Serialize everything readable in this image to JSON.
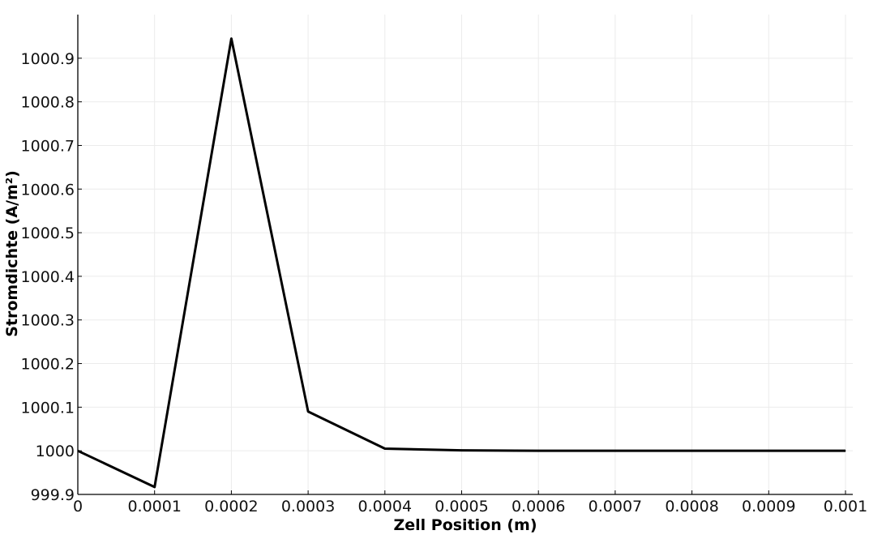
{
  "chart_data": {
    "type": "line",
    "title": "",
    "xlabel": "Zell Position (m)",
    "ylabel": "Stromdichte (A/m²)",
    "xlim": [
      0,
      0.001
    ],
    "ylim": [
      999.9,
      1001.0
    ],
    "grid": true,
    "legend": "none",
    "x_ticks": [
      {
        "value": 0,
        "label": "0"
      },
      {
        "value": 0.0001,
        "label": "0.0001"
      },
      {
        "value": 0.0002,
        "label": "0.0002"
      },
      {
        "value": 0.0003,
        "label": "0.0003"
      },
      {
        "value": 0.0004,
        "label": "0.0004"
      },
      {
        "value": 0.0005,
        "label": "0.0005"
      },
      {
        "value": 0.0006,
        "label": "0.0006"
      },
      {
        "value": 0.0007,
        "label": "0.0007"
      },
      {
        "value": 0.0008,
        "label": "0.0008"
      },
      {
        "value": 0.0009,
        "label": "0.0009"
      },
      {
        "value": 0.001,
        "label": "0.001"
      }
    ],
    "y_ticks": [
      {
        "value": 999.9,
        "label": "999.9"
      },
      {
        "value": 1000.0,
        "label": "1000"
      },
      {
        "value": 1000.1,
        "label": "1000.1"
      },
      {
        "value": 1000.2,
        "label": "1000.2"
      },
      {
        "value": 1000.3,
        "label": "1000.3"
      },
      {
        "value": 1000.4,
        "label": "1000.4"
      },
      {
        "value": 1000.5,
        "label": "1000.5"
      },
      {
        "value": 1000.6,
        "label": "1000.6"
      },
      {
        "value": 1000.7,
        "label": "1000.7"
      },
      {
        "value": 1000.8,
        "label": "1000.8"
      },
      {
        "value": 1000.9,
        "label": "1000.9"
      }
    ],
    "series": [
      {
        "color": "#000000",
        "x": [
          0,
          0.0001,
          0.0002,
          0.0003,
          0.0004,
          0.0005,
          0.0006,
          0.0007,
          0.0008,
          0.0009,
          0.001
        ],
        "y": [
          1000.0,
          999.917,
          1000.945,
          1000.09,
          1000.005,
          1000.001,
          1000.0,
          1000.0,
          1000.0,
          1000.0,
          1000.0
        ]
      }
    ]
  }
}
